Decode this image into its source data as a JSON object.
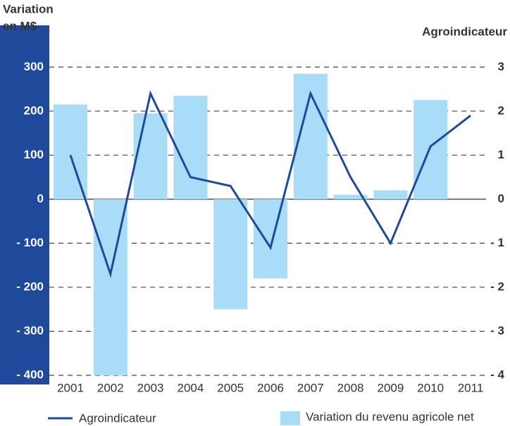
{
  "chart_data": {
    "type": "bar",
    "y_label": [
      "Variation",
      "en M$"
    ],
    "y2_label": "Agroindicateur",
    "categories": [
      "2001",
      "2002",
      "2003",
      "2004",
      "2005",
      "2006",
      "2007",
      "2008",
      "2009",
      "2010",
      "2011"
    ],
    "series": [
      {
        "name": "Variation du revenu agricole net",
        "type": "bar",
        "color": "#a8dcf7",
        "values": [
          215,
          -400,
          195,
          235,
          -250,
          -180,
          285,
          10,
          20,
          225,
          null
        ]
      },
      {
        "name": "Agroindicateur",
        "type": "line",
        "color": "#1f4a9c",
        "axis": "y2",
        "values": [
          1.0,
          -1.7,
          2.4,
          0.5,
          0.3,
          -1.1,
          2.4,
          0.5,
          -1.0,
          1.2,
          1.9
        ]
      }
    ],
    "ylim": [
      -400,
      350
    ],
    "yticks": [
      {
        "value": -400,
        "label": "- 400"
      },
      {
        "value": -300,
        "label": "- 300"
      },
      {
        "value": -200,
        "label": "- 200"
      },
      {
        "value": -100,
        "label": "- 100"
      },
      0,
      100,
      200,
      300
    ],
    "y2lim": [
      -4,
      3.5
    ],
    "y2ticks": [
      {
        "value": -4,
        "label": "- 4"
      },
      {
        "value": -3,
        "label": "- 3"
      },
      {
        "value": -2,
        "label": "- 2"
      },
      {
        "value": -1,
        "label": "- 1"
      },
      0,
      1,
      2,
      3
    ],
    "grid": true
  }
}
